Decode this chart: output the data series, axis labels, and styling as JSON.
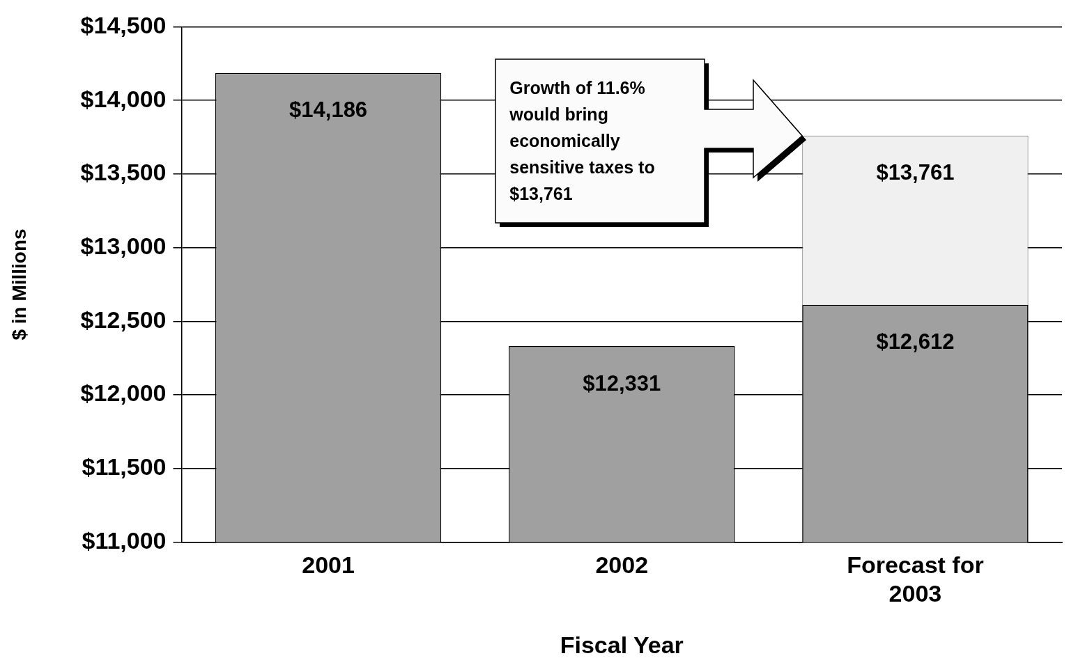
{
  "chart_data": {
    "type": "bar",
    "categories": [
      "2001",
      "2002",
      "Forecast for 2003"
    ],
    "series": [
      {
        "color": "#a0a0a0",
        "values": [
          14186,
          12331,
          12612
        ],
        "value_labels": [
          "$14,186",
          "$12,331",
          "$12,612"
        ]
      },
      {
        "color": "#f0f0f0",
        "values": [
          null,
          null,
          13761
        ],
        "value_labels": [
          null,
          null,
          "$13,761"
        ]
      }
    ],
    "xlabel": "Fiscal Year",
    "ylabel": "$ in Millions",
    "ylim": [
      11000,
      14500
    ],
    "yticks": [
      {
        "value": 11000,
        "label": "$11,000"
      },
      {
        "value": 11500,
        "label": "$11,500"
      },
      {
        "value": 12000,
        "label": "$12,000"
      },
      {
        "value": 12500,
        "label": "$12,500"
      },
      {
        "value": 13000,
        "label": "$13,000"
      },
      {
        "value": 13500,
        "label": "$13,500"
      },
      {
        "value": 14000,
        "label": "$14,000"
      },
      {
        "value": 14500,
        "label": "$14,500"
      }
    ],
    "grid": "y",
    "annotations": [
      "Growth of 11.6% would bring economically sensitive taxes to $13,761"
    ]
  }
}
